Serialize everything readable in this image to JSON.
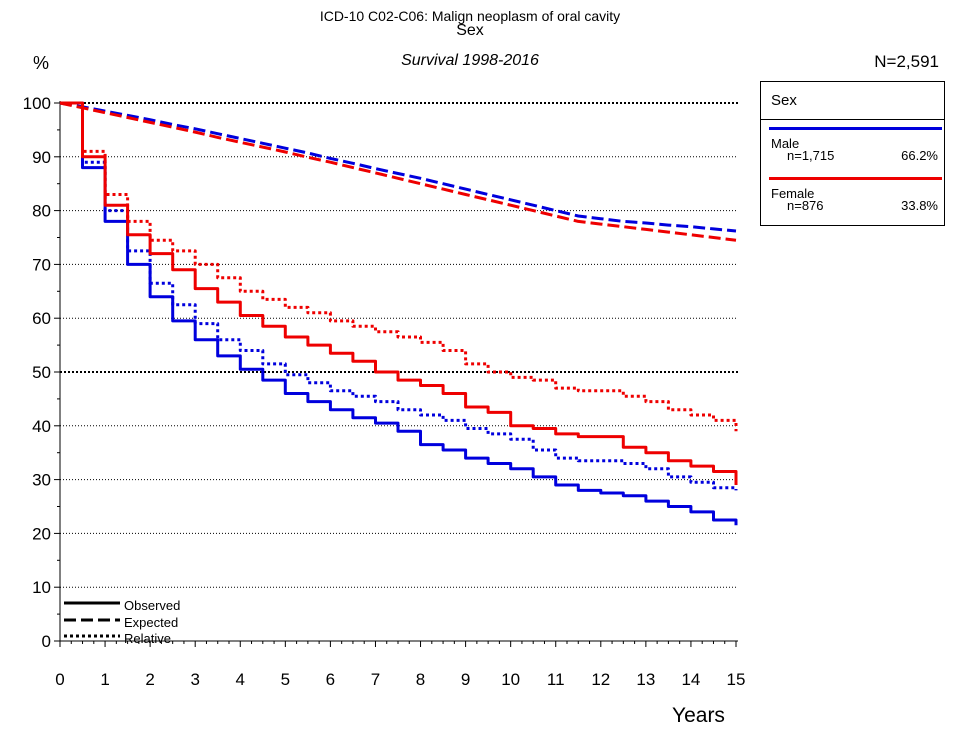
{
  "header": {
    "title_line1": "ICD-10 C02-C06: Malign neoplasm of oral cavity",
    "title_line2": "Sex",
    "subtitle": "Survival 1998-2016",
    "total_n": "N=2,591"
  },
  "legend": {
    "title": "Sex",
    "groups": [
      {
        "name": "Male",
        "n": "n=1,715",
        "pct": "66.2%",
        "color": "#0000dd"
      },
      {
        "name": "Female",
        "n": "n=876",
        "pct": "33.8%",
        "color": "#ee0000"
      }
    ],
    "styles": [
      "Observed",
      "Expected",
      "Relative"
    ]
  },
  "chart_data": {
    "type": "line",
    "xlabel": "Years",
    "ylabel": "%",
    "xlim": [
      0,
      15
    ],
    "ylim": [
      0,
      100
    ],
    "x_ticks": [
      0,
      1,
      2,
      3,
      4,
      5,
      6,
      7,
      8,
      9,
      10,
      11,
      12,
      13,
      14,
      15
    ],
    "y_ticks": [
      0,
      10,
      20,
      30,
      40,
      50,
      60,
      70,
      80,
      90,
      100
    ],
    "gridlines": "horizontal dotted at 10-unit steps",
    "x": [
      0,
      0.5,
      1,
      1.5,
      2,
      2.5,
      3,
      3.5,
      4,
      4.5,
      5,
      5.5,
      6,
      6.5,
      7,
      7.5,
      8,
      8.5,
      9,
      9.5,
      10,
      10.5,
      11,
      11.5,
      12,
      12.5,
      13,
      13.5,
      14,
      14.5,
      15
    ],
    "series": [
      {
        "group": "Male",
        "measure": "Observed",
        "color": "#0000dd",
        "dash": "solid",
        "values": [
          100,
          88,
          78,
          70,
          64,
          59.5,
          56,
          53,
          50.5,
          48.5,
          46,
          44.5,
          43,
          41.5,
          40.5,
          39,
          36.5,
          35.5,
          34,
          33,
          32,
          30.5,
          29,
          28,
          27.5,
          27,
          26,
          25,
          24,
          22.5,
          21.5
        ]
      },
      {
        "group": "Male",
        "measure": "Relative",
        "color": "#0000dd",
        "dash": "dotted",
        "values": [
          100,
          89,
          80,
          72.5,
          66.5,
          62.5,
          59,
          56,
          54,
          51.5,
          49.5,
          48,
          46.5,
          45.5,
          44.5,
          43,
          42,
          41,
          39.5,
          38.5,
          37.5,
          35.5,
          34,
          33.5,
          33.5,
          33,
          32,
          30.5,
          29.5,
          28.5,
          28
        ]
      },
      {
        "group": "Male",
        "measure": "Expected",
        "color": "#0000dd",
        "dash": "dashed",
        "values": [
          100,
          99.3,
          98.5,
          97.7,
          96.9,
          96,
          95.2,
          94.3,
          93.4,
          92.5,
          91.6,
          90.7,
          89.7,
          88.8,
          87.8,
          86.9,
          86,
          85,
          84,
          83,
          82,
          81,
          80,
          79,
          78.5,
          78,
          77.7,
          77.3,
          77,
          76.6,
          76.2
        ]
      },
      {
        "group": "Female",
        "measure": "Observed",
        "color": "#ee0000",
        "dash": "solid",
        "values": [
          100,
          90,
          81,
          75.5,
          72,
          69,
          65.5,
          63,
          60.5,
          58.5,
          56.5,
          55,
          53.5,
          52,
          50,
          48.5,
          47.5,
          46,
          43.5,
          42.5,
          40,
          39.5,
          38.5,
          38,
          38,
          36,
          35,
          33.5,
          32.5,
          31.5,
          29
        ]
      },
      {
        "group": "Female",
        "measure": "Relative",
        "color": "#ee0000",
        "dash": "dotted",
        "values": [
          100,
          91,
          83,
          78,
          74.5,
          72.5,
          70,
          67.5,
          65,
          63.5,
          62,
          61,
          59.5,
          58.5,
          57.5,
          56.5,
          55.5,
          54,
          51.5,
          50,
          49,
          48.5,
          47,
          46.5,
          46.5,
          45.5,
          44.5,
          43,
          42,
          41,
          39
        ]
      },
      {
        "group": "Female",
        "measure": "Expected",
        "color": "#ee0000",
        "dash": "dashed",
        "values": [
          100,
          99.1,
          98.2,
          97.3,
          96.4,
          95.5,
          94.6,
          93.6,
          92.7,
          91.8,
          90.9,
          89.9,
          89,
          88,
          87,
          86,
          85,
          84,
          83,
          82,
          81,
          80,
          79,
          78,
          77.5,
          77,
          76.5,
          76,
          75.5,
          75,
          74.5
        ]
      }
    ]
  }
}
